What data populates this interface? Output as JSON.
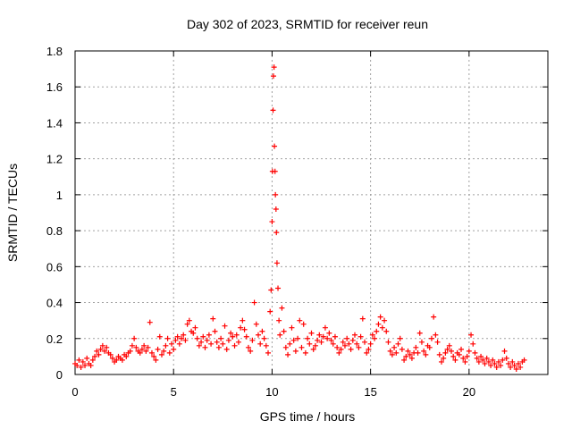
{
  "chart_data": {
    "type": "scatter",
    "title": "Day 302 of 2023, SRMTID for receiver reun",
    "xlabel": "GPS time / hours",
    "ylabel": "SRMTID / TECUs",
    "xlim": [
      0,
      24
    ],
    "ylim": [
      0,
      1.8
    ],
    "xticks": [
      0,
      5,
      10,
      15,
      20
    ],
    "yticks": [
      0,
      0.2,
      0.4,
      0.6,
      0.8,
      1,
      1.2,
      1.4,
      1.6,
      1.8
    ],
    "ytick_labels": [
      "0",
      "0.2",
      "0.4",
      "0.6",
      "0.8",
      "1",
      "1.2",
      "1.4",
      "1.6",
      "1.8"
    ],
    "grid": true,
    "marker": "+",
    "color": "#ff0000",
    "series": [
      {
        "name": "SRMTID",
        "points": [
          [
            0.0,
            0.06
          ],
          [
            0.1,
            0.05
          ],
          [
            0.2,
            0.08
          ],
          [
            0.3,
            0.04
          ],
          [
            0.4,
            0.07
          ],
          [
            0.5,
            0.05
          ],
          [
            0.6,
            0.09
          ],
          [
            0.7,
            0.06
          ],
          [
            0.8,
            0.05
          ],
          [
            0.9,
            0.08
          ],
          [
            1.0,
            0.1
          ],
          [
            1.1,
            0.13
          ],
          [
            1.2,
            0.11
          ],
          [
            1.3,
            0.14
          ],
          [
            1.4,
            0.16
          ],
          [
            1.5,
            0.13
          ],
          [
            1.6,
            0.15
          ],
          [
            1.7,
            0.12
          ],
          [
            1.8,
            0.11
          ],
          [
            1.9,
            0.09
          ],
          [
            2.0,
            0.07
          ],
          [
            2.1,
            0.08
          ],
          [
            2.2,
            0.1
          ],
          [
            2.3,
            0.09
          ],
          [
            2.4,
            0.08
          ],
          [
            2.5,
            0.11
          ],
          [
            2.6,
            0.1
          ],
          [
            2.7,
            0.12
          ],
          [
            2.8,
            0.13
          ],
          [
            2.9,
            0.16
          ],
          [
            3.0,
            0.2
          ],
          [
            3.1,
            0.15
          ],
          [
            3.2,
            0.13
          ],
          [
            3.3,
            0.12
          ],
          [
            3.4,
            0.14
          ],
          [
            3.5,
            0.16
          ],
          [
            3.6,
            0.13
          ],
          [
            3.7,
            0.15
          ],
          [
            3.8,
            0.29
          ],
          [
            3.9,
            0.12
          ],
          [
            4.0,
            0.1
          ],
          [
            4.1,
            0.08
          ],
          [
            4.2,
            0.14
          ],
          [
            4.3,
            0.21
          ],
          [
            4.4,
            0.11
          ],
          [
            4.5,
            0.13
          ],
          [
            4.6,
            0.16
          ],
          [
            4.7,
            0.2
          ],
          [
            4.8,
            0.12
          ],
          [
            4.9,
            0.17
          ],
          [
            5.0,
            0.14
          ],
          [
            5.1,
            0.19
          ],
          [
            5.2,
            0.21
          ],
          [
            5.3,
            0.17
          ],
          [
            5.4,
            0.2
          ],
          [
            5.5,
            0.22
          ],
          [
            5.6,
            0.19
          ],
          [
            5.7,
            0.28
          ],
          [
            5.8,
            0.3
          ],
          [
            5.9,
            0.24
          ],
          [
            6.0,
            0.23
          ],
          [
            6.1,
            0.26
          ],
          [
            6.2,
            0.2
          ],
          [
            6.3,
            0.16
          ],
          [
            6.4,
            0.18
          ],
          [
            6.5,
            0.21
          ],
          [
            6.6,
            0.15
          ],
          [
            6.7,
            0.19
          ],
          [
            6.8,
            0.22
          ],
          [
            6.9,
            0.17
          ],
          [
            7.0,
            0.31
          ],
          [
            7.1,
            0.24
          ],
          [
            7.2,
            0.18
          ],
          [
            7.3,
            0.15
          ],
          [
            7.4,
            0.2
          ],
          [
            7.5,
            0.17
          ],
          [
            7.6,
            0.27
          ],
          [
            7.7,
            0.14
          ],
          [
            7.8,
            0.19
          ],
          [
            7.9,
            0.23
          ],
          [
            8.0,
            0.21
          ],
          [
            8.1,
            0.16
          ],
          [
            8.2,
            0.22
          ],
          [
            8.3,
            0.18
          ],
          [
            8.4,
            0.26
          ],
          [
            8.5,
            0.3
          ],
          [
            8.6,
            0.25
          ],
          [
            8.7,
            0.21
          ],
          [
            8.8,
            0.15
          ],
          [
            8.9,
            0.13
          ],
          [
            9.0,
            0.19
          ],
          [
            9.1,
            0.4
          ],
          [
            9.2,
            0.28
          ],
          [
            9.3,
            0.22
          ],
          [
            9.4,
            0.17
          ],
          [
            9.5,
            0.24
          ],
          [
            9.6,
            0.2
          ],
          [
            9.7,
            0.16
          ],
          [
            9.8,
            0.12
          ],
          [
            9.9,
            0.35
          ],
          [
            9.95,
            0.47
          ],
          [
            10.0,
            0.85
          ],
          [
            10.02,
            1.13
          ],
          [
            10.05,
            1.47
          ],
          [
            10.07,
            1.66
          ],
          [
            10.1,
            1.71
          ],
          [
            10.12,
            1.27
          ],
          [
            10.15,
            1.13
          ],
          [
            10.17,
            1.0
          ],
          [
            10.2,
            0.92
          ],
          [
            10.22,
            0.79
          ],
          [
            10.25,
            0.62
          ],
          [
            10.3,
            0.48
          ],
          [
            10.35,
            0.3
          ],
          [
            10.4,
            0.22
          ],
          [
            10.5,
            0.37
          ],
          [
            10.6,
            0.24
          ],
          [
            10.7,
            0.15
          ],
          [
            10.8,
            0.11
          ],
          [
            10.9,
            0.17
          ],
          [
            11.0,
            0.26
          ],
          [
            11.1,
            0.19
          ],
          [
            11.2,
            0.13
          ],
          [
            11.3,
            0.2
          ],
          [
            11.4,
            0.3
          ],
          [
            11.5,
            0.15
          ],
          [
            11.6,
            0.28
          ],
          [
            11.7,
            0.12
          ],
          [
            11.8,
            0.2
          ],
          [
            11.9,
            0.17
          ],
          [
            12.0,
            0.23
          ],
          [
            12.1,
            0.14
          ],
          [
            12.2,
            0.16
          ],
          [
            12.3,
            0.19
          ],
          [
            12.4,
            0.22
          ],
          [
            12.5,
            0.18
          ],
          [
            12.6,
            0.21
          ],
          [
            12.7,
            0.26
          ],
          [
            12.8,
            0.2
          ],
          [
            12.9,
            0.23
          ],
          [
            13.0,
            0.19
          ],
          [
            13.1,
            0.17
          ],
          [
            13.2,
            0.21
          ],
          [
            13.3,
            0.15
          ],
          [
            13.4,
            0.12
          ],
          [
            13.5,
            0.14
          ],
          [
            13.6,
            0.18
          ],
          [
            13.7,
            0.16
          ],
          [
            13.8,
            0.2
          ],
          [
            13.9,
            0.17
          ],
          [
            14.0,
            0.14
          ],
          [
            14.1,
            0.19
          ],
          [
            14.2,
            0.22
          ],
          [
            14.3,
            0.17
          ],
          [
            14.4,
            0.15
          ],
          [
            14.5,
            0.21
          ],
          [
            14.6,
            0.31
          ],
          [
            14.7,
            0.18
          ],
          [
            14.8,
            0.12
          ],
          [
            14.9,
            0.14
          ],
          [
            15.0,
            0.17
          ],
          [
            15.1,
            0.22
          ],
          [
            15.2,
            0.2
          ],
          [
            15.3,
            0.24
          ],
          [
            15.4,
            0.28
          ],
          [
            15.5,
            0.32
          ],
          [
            15.6,
            0.26
          ],
          [
            15.7,
            0.3
          ],
          [
            15.8,
            0.24
          ],
          [
            15.9,
            0.18
          ],
          [
            16.0,
            0.13
          ],
          [
            16.1,
            0.11
          ],
          [
            16.2,
            0.15
          ],
          [
            16.3,
            0.12
          ],
          [
            16.4,
            0.17
          ],
          [
            16.5,
            0.2
          ],
          [
            16.6,
            0.14
          ],
          [
            16.7,
            0.08
          ],
          [
            16.8,
            0.1
          ],
          [
            16.9,
            0.13
          ],
          [
            17.0,
            0.11
          ],
          [
            17.1,
            0.09
          ],
          [
            17.2,
            0.12
          ],
          [
            17.3,
            0.15
          ],
          [
            17.4,
            0.12
          ],
          [
            17.5,
            0.23
          ],
          [
            17.6,
            0.18
          ],
          [
            17.7,
            0.13
          ],
          [
            17.8,
            0.11
          ],
          [
            17.9,
            0.16
          ],
          [
            18.0,
            0.15
          ],
          [
            18.1,
            0.2
          ],
          [
            18.2,
            0.32
          ],
          [
            18.3,
            0.22
          ],
          [
            18.4,
            0.18
          ],
          [
            18.5,
            0.11
          ],
          [
            18.6,
            0.07
          ],
          [
            18.7,
            0.09
          ],
          [
            18.8,
            0.12
          ],
          [
            18.9,
            0.14
          ],
          [
            19.0,
            0.16
          ],
          [
            19.1,
            0.13
          ],
          [
            19.2,
            0.1
          ],
          [
            19.3,
            0.08
          ],
          [
            19.4,
            0.12
          ],
          [
            19.5,
            0.11
          ],
          [
            19.6,
            0.14
          ],
          [
            19.7,
            0.09
          ],
          [
            19.8,
            0.07
          ],
          [
            19.9,
            0.1
          ],
          [
            20.0,
            0.13
          ],
          [
            20.1,
            0.22
          ],
          [
            20.2,
            0.17
          ],
          [
            20.3,
            0.12
          ],
          [
            20.4,
            0.09
          ],
          [
            20.5,
            0.07
          ],
          [
            20.6,
            0.1
          ],
          [
            20.7,
            0.08
          ],
          [
            20.8,
            0.06
          ],
          [
            20.9,
            0.09
          ],
          [
            21.0,
            0.07
          ],
          [
            21.1,
            0.05
          ],
          [
            21.2,
            0.08
          ],
          [
            21.3,
            0.06
          ],
          [
            21.4,
            0.04
          ],
          [
            21.5,
            0.07
          ],
          [
            21.6,
            0.05
          ],
          [
            21.7,
            0.08
          ],
          [
            21.8,
            0.13
          ],
          [
            21.9,
            0.09
          ],
          [
            22.0,
            0.06
          ],
          [
            22.1,
            0.04
          ],
          [
            22.2,
            0.07
          ],
          [
            22.3,
            0.05
          ],
          [
            22.4,
            0.03
          ],
          [
            22.5,
            0.06
          ],
          [
            22.6,
            0.04
          ],
          [
            22.7,
            0.07
          ],
          [
            22.8,
            0.08
          ]
        ]
      }
    ]
  }
}
